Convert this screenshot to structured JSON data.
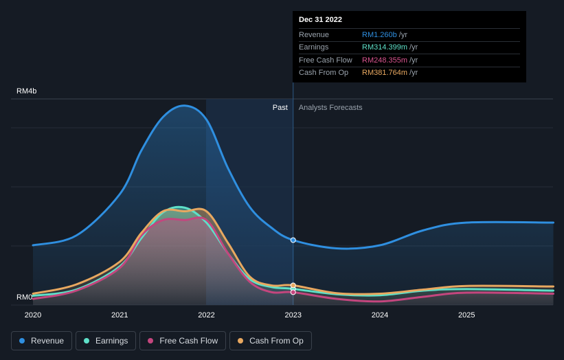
{
  "chart_data": {
    "type": "area",
    "y_axis": {
      "top_label": "RM4b",
      "bottom_label": "RM0",
      "range": [
        0,
        4.0
      ],
      "unit": "RM b"
    },
    "x_ticks": [
      "2020",
      "2021",
      "2022",
      "2023",
      "2024",
      "2025"
    ],
    "regions": {
      "past": "Past",
      "forecast": "Analysts Forecasts"
    },
    "series": [
      {
        "name": "Revenue",
        "color": "#2f8fe0",
        "points": [
          [
            2020.0,
            1.16
          ],
          [
            2020.5,
            1.35
          ],
          [
            2021.0,
            2.15
          ],
          [
            2021.25,
            3.0
          ],
          [
            2021.5,
            3.65
          ],
          [
            2021.75,
            3.87
          ],
          [
            2022.0,
            3.6
          ],
          [
            2022.25,
            2.65
          ],
          [
            2022.5,
            1.9
          ],
          [
            2022.75,
            1.5
          ],
          [
            2023.0,
            1.26
          ],
          [
            2023.5,
            1.1
          ],
          [
            2024.0,
            1.16
          ],
          [
            2024.5,
            1.45
          ],
          [
            2025.0,
            1.6
          ],
          [
            2026.0,
            1.6
          ]
        ]
      },
      {
        "name": "Earnings",
        "color": "#5ee0c8",
        "points": [
          [
            2020.0,
            0.18
          ],
          [
            2020.5,
            0.3
          ],
          [
            2021.0,
            0.75
          ],
          [
            2021.25,
            1.3
          ],
          [
            2021.5,
            1.8
          ],
          [
            2021.75,
            1.89
          ],
          [
            2022.0,
            1.6
          ],
          [
            2022.25,
            1.0
          ],
          [
            2022.5,
            0.5
          ],
          [
            2022.75,
            0.35
          ],
          [
            2023.0,
            0.314
          ],
          [
            2023.5,
            0.21
          ],
          [
            2024.0,
            0.19
          ],
          [
            2024.5,
            0.28
          ],
          [
            2025.0,
            0.31
          ],
          [
            2026.0,
            0.28
          ]
        ]
      },
      {
        "name": "Free Cash Flow",
        "color": "#c4467e",
        "points": [
          [
            2020.0,
            0.12
          ],
          [
            2020.5,
            0.28
          ],
          [
            2021.0,
            0.72
          ],
          [
            2021.25,
            1.35
          ],
          [
            2021.5,
            1.65
          ],
          [
            2021.75,
            1.65
          ],
          [
            2022.0,
            1.65
          ],
          [
            2022.25,
            1.0
          ],
          [
            2022.5,
            0.45
          ],
          [
            2022.75,
            0.25
          ],
          [
            2023.0,
            0.248
          ],
          [
            2023.5,
            0.12
          ],
          [
            2024.0,
            0.07
          ],
          [
            2024.5,
            0.16
          ],
          [
            2025.0,
            0.24
          ],
          [
            2026.0,
            0.22
          ]
        ]
      },
      {
        "name": "Cash From Op",
        "color": "#e8a860",
        "points": [
          [
            2020.0,
            0.22
          ],
          [
            2020.5,
            0.4
          ],
          [
            2021.0,
            0.84
          ],
          [
            2021.25,
            1.4
          ],
          [
            2021.5,
            1.82
          ],
          [
            2021.75,
            1.82
          ],
          [
            2022.0,
            1.82
          ],
          [
            2022.25,
            1.2
          ],
          [
            2022.5,
            0.55
          ],
          [
            2022.75,
            0.38
          ],
          [
            2023.0,
            0.382
          ],
          [
            2023.5,
            0.23
          ],
          [
            2024.0,
            0.22
          ],
          [
            2024.5,
            0.3
          ],
          [
            2025.0,
            0.37
          ],
          [
            2026.0,
            0.36
          ]
        ]
      }
    ],
    "highlight_x": 2023.0,
    "grid": true
  },
  "tooltip": {
    "date": "Dec 31 2022",
    "rows": [
      {
        "label": "Revenue",
        "value": "RM1.260b",
        "unit": "/yr",
        "color": "#2f8fe0"
      },
      {
        "label": "Earnings",
        "value": "RM314.399m",
        "unit": "/yr",
        "color": "#5ee0c8"
      },
      {
        "label": "Free Cash Flow",
        "value": "RM248.355m",
        "unit": "/yr",
        "color": "#c4467e"
      },
      {
        "label": "Cash From Op",
        "value": "RM381.764m",
        "unit": "/yr",
        "color": "#e8a860"
      }
    ]
  },
  "legend": [
    {
      "label": "Revenue",
      "color": "#2f8fe0"
    },
    {
      "label": "Earnings",
      "color": "#5ee0c8"
    },
    {
      "label": "Free Cash Flow",
      "color": "#c4467e"
    },
    {
      "label": "Cash From Op",
      "color": "#e8a860"
    }
  ]
}
